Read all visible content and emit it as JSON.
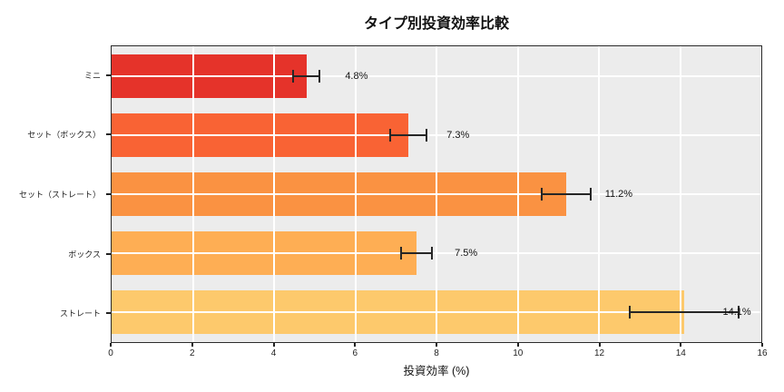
{
  "chart_data": {
    "type": "bar",
    "orientation": "horizontal",
    "title": "タイプ別投資効率比較",
    "xlabel": "投資効率 (%)",
    "ylabel": "",
    "categories": [
      "ミニ",
      "セット（ボックス）",
      "セット（ストレート）",
      "ボックス",
      "ストレート"
    ],
    "values": [
      4.8,
      7.3,
      11.2,
      7.5,
      14.1
    ],
    "errors": [
      0.32,
      0.45,
      0.6,
      0.38,
      1.35
    ],
    "bar_labels": [
      "4.8%",
      "7.3%",
      "11.2%",
      "7.5%",
      "14.1%"
    ],
    "bar_colors": [
      "#e5332a",
      "#f96334",
      "#fa9242",
      "#feae54",
      "#fdc96c"
    ],
    "xlim": [
      0,
      16
    ],
    "xticks": [
      0,
      2,
      4,
      6,
      8,
      10,
      12,
      14,
      16
    ],
    "xtick_labels": [
      "0",
      "2",
      "4",
      "6",
      "8",
      "10",
      "12",
      "14",
      "16"
    ],
    "grid": true,
    "grid_on_top": true,
    "legend": false
  },
  "style": {
    "figure_bg": "#ffffff",
    "plot_bg": "#ececec",
    "grid_color": "#ffffff",
    "error_color": "#262626",
    "spine_color": "#2b2b2b",
    "text_color": "#111111"
  }
}
